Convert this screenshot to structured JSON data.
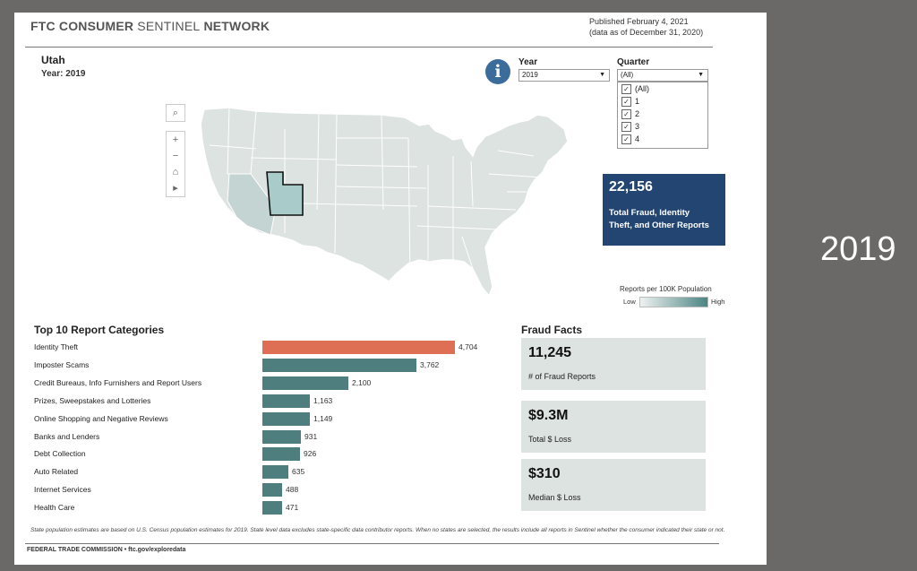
{
  "header": {
    "brand_bold1": "FTC CONSUMER",
    "brand_light": "SENTINEL",
    "brand_bold2": "NETWORK",
    "published": "Published February 4, 2021",
    "data_as_of": "(data as of December 31, 2020)"
  },
  "selection": {
    "state": "Utah",
    "year_line": "Year: 2019"
  },
  "filters": {
    "info_icon": "i",
    "year_label": "Year",
    "year_value": "2019",
    "quarter_label": "Quarter",
    "quarter_value": "(All)",
    "quarter_options": [
      "(All)",
      "1",
      "2",
      "3",
      "4"
    ]
  },
  "map_controls": [
    "search-icon",
    "zoom-in-icon",
    "zoom-out-icon",
    "home-icon",
    "play-icon"
  ],
  "map_control_glyphs": [
    "⌕",
    "+",
    "−",
    "⌂",
    "▸"
  ],
  "total": {
    "value": "22,156",
    "label": "Total Fraud, Identity Theft, and Other Reports"
  },
  "legend": {
    "title": "Reports per 100K Population",
    "low": "Low",
    "high": "High"
  },
  "top10": {
    "title": "Top 10 Report Categories",
    "items": [
      {
        "label": "Identity Theft",
        "value": "4,704"
      },
      {
        "label": "Imposter Scams",
        "value": "3,762"
      },
      {
        "label": "Credit Bureaus, Info Furnishers and Report Users",
        "value": "2,100"
      },
      {
        "label": "Prizes, Sweepstakes and Lotteries",
        "value": "1,163"
      },
      {
        "label": "Online Shopping and Negative Reviews",
        "value": "1,149"
      },
      {
        "label": "Banks and Lenders",
        "value": "931"
      },
      {
        "label": "Debt Collection",
        "value": "926"
      },
      {
        "label": "Auto Related",
        "value": "635"
      },
      {
        "label": "Internet Services",
        "value": "488"
      },
      {
        "label": "Health Care",
        "value": "471"
      }
    ]
  },
  "fraud_facts": {
    "title": "Fraud Facts",
    "cards": [
      {
        "value": "11,245",
        "label": "# of Fraud Reports"
      },
      {
        "value": "$9.3M",
        "label": "Total $ Loss"
      },
      {
        "value": "$310",
        "label": "Median $ Loss"
      }
    ]
  },
  "footnote": "State population estimates are based on U.S. Census population estimates for 2019. State level data excludes state-specific data contributor reports. When no states are selected, the results include all reports in Sentinel whether the consumer indicated their state or not.",
  "footer": "FEDERAL TRADE COMMISSION • ftc.gov/exploredata",
  "slide_year": "2019",
  "colors": {
    "top_bar": "#de6f55",
    "bar": "#4e7f7e",
    "kpi_bg": "#234572",
    "card_bg": "#dce3e1",
    "highlight_state": "#a9cbc9"
  }
}
